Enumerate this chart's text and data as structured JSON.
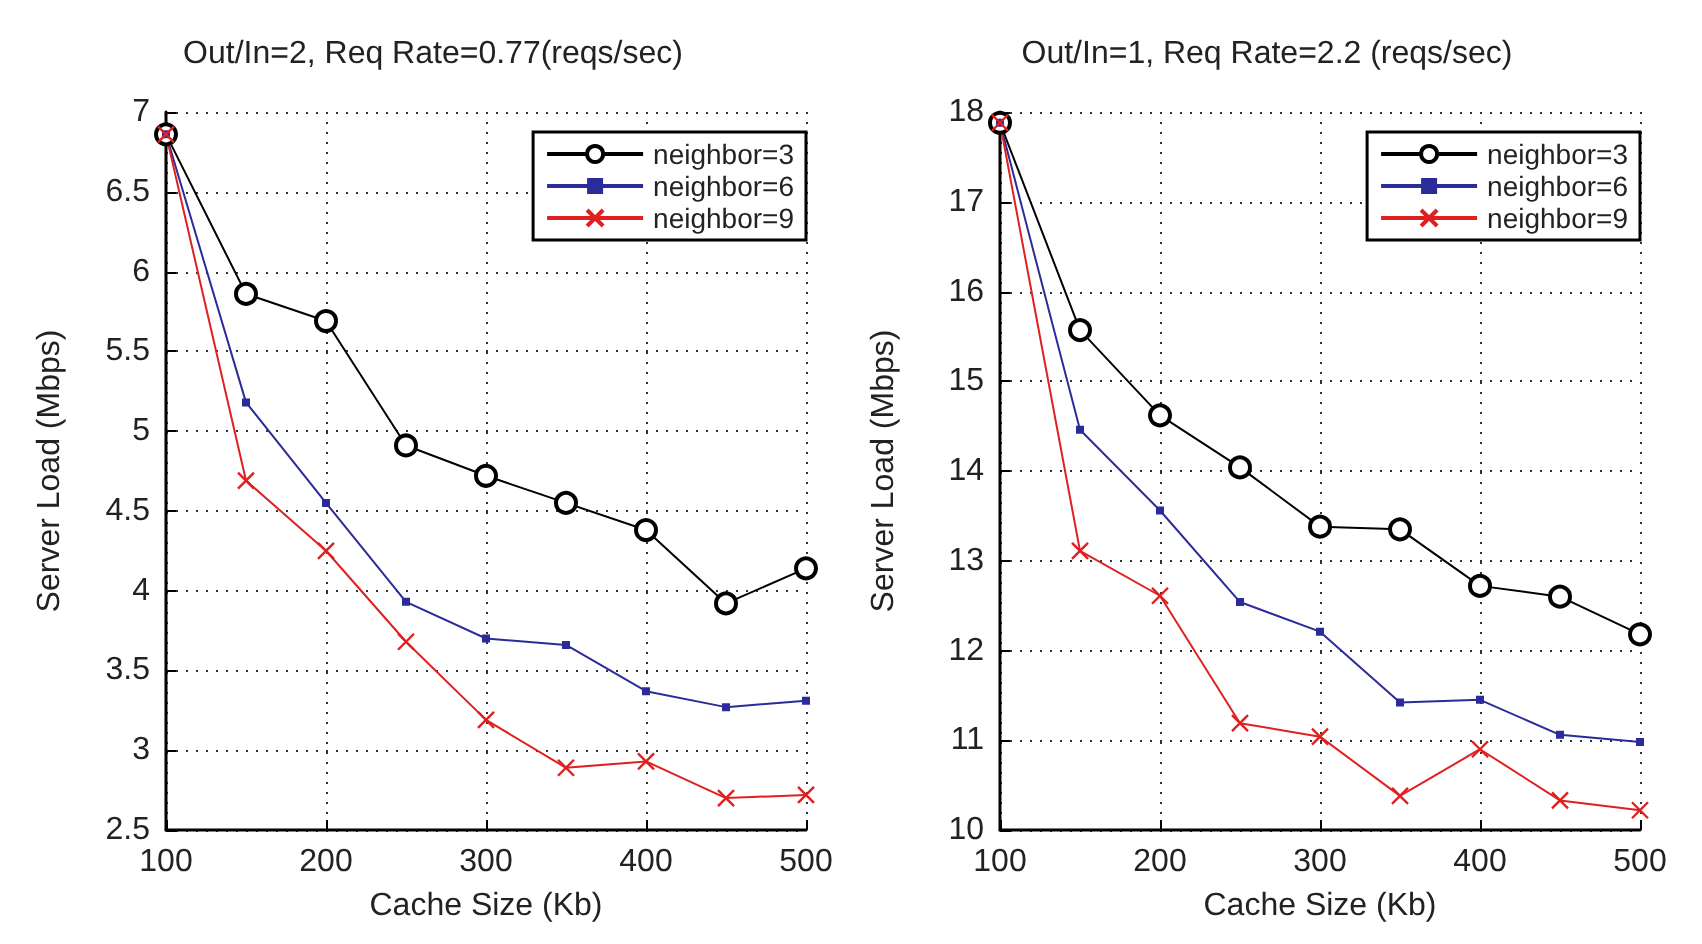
{
  "chart_data": [
    {
      "type": "line",
      "title": "Out/In=2, Req Rate=0.77(reqs/sec)",
      "xlabel": "Cache Size (Kb)",
      "ylabel": "Server Load (Mbps)",
      "x": [
        100,
        150,
        200,
        250,
        300,
        350,
        400,
        450,
        500
      ],
      "xlim": [
        100,
        500
      ],
      "xticks": [
        100,
        200,
        300,
        400,
        500
      ],
      "ylim": [
        2.5,
        7
      ],
      "yticks": [
        2.5,
        3,
        3.5,
        4,
        4.5,
        5,
        5.5,
        6,
        6.5,
        7
      ],
      "grid": true,
      "legend": "top right",
      "line_style": "solid",
      "series": [
        {
          "name": "neighbor=3",
          "color": "#000000",
          "marker": "circle",
          "values": [
            6.86,
            5.86,
            5.69,
            4.91,
            4.72,
            4.55,
            4.38,
            3.92,
            4.14
          ]
        },
        {
          "name": "neighbor=6",
          "color": "#2b2b9a",
          "marker": "square",
          "values": [
            6.86,
            5.18,
            4.55,
            3.93,
            3.7,
            3.66,
            3.37,
            3.27,
            3.31
          ]
        },
        {
          "name": "neighbor=9",
          "color": "#e02020",
          "marker": "cross",
          "values": [
            6.86,
            4.69,
            4.25,
            3.68,
            3.19,
            2.89,
            2.93,
            2.7,
            2.72
          ]
        }
      ]
    },
    {
      "type": "line",
      "title": "Out/In=1, Req Rate=2.2 (reqs/sec)",
      "xlabel": "Cache Size (Kb)",
      "ylabel": "Server Load (Mbps)",
      "x": [
        100,
        150,
        200,
        250,
        300,
        350,
        400,
        450,
        500
      ],
      "xlim": [
        100,
        500
      ],
      "xticks": [
        100,
        200,
        300,
        400,
        500
      ],
      "ylim": [
        10,
        18
      ],
      "yticks": [
        10,
        11,
        12,
        13,
        14,
        15,
        16,
        17,
        18
      ],
      "grid": true,
      "legend": "top right",
      "line_style": "solid",
      "series": [
        {
          "name": "neighbor=3",
          "color": "#000000",
          "marker": "circle",
          "values": [
            17.88,
            15.57,
            14.62,
            14.04,
            13.38,
            13.35,
            12.72,
            12.6,
            12.18
          ]
        },
        {
          "name": "neighbor=6",
          "color": "#2b2b9a",
          "marker": "square",
          "values": [
            17.88,
            14.46,
            13.56,
            12.54,
            12.21,
            11.42,
            11.45,
            11.06,
            10.98
          ]
        },
        {
          "name": "neighbor=9",
          "color": "#e02020",
          "marker": "cross",
          "values": [
            17.88,
            13.11,
            12.61,
            11.19,
            11.04,
            10.38,
            10.9,
            10.33,
            10.22
          ]
        }
      ]
    }
  ]
}
